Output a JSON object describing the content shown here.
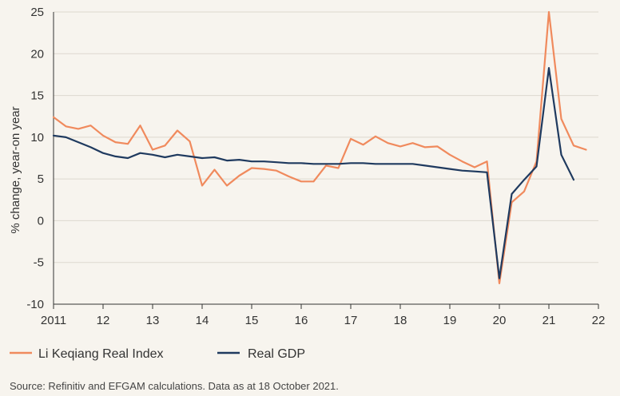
{
  "chart_data": {
    "type": "line",
    "title": "",
    "xlabel": "",
    "ylabel": "% change, year-on year",
    "ylim": [
      -10,
      25
    ],
    "xlim": [
      2011,
      2022
    ],
    "yticks": [
      -10,
      -5,
      0,
      5,
      10,
      15,
      20,
      25
    ],
    "xticks": [
      {
        "value": 2011,
        "label": "2011"
      },
      {
        "value": 2012,
        "label": "12"
      },
      {
        "value": 2013,
        "label": "13"
      },
      {
        "value": 2014,
        "label": "14"
      },
      {
        "value": 2015,
        "label": "15"
      },
      {
        "value": 2016,
        "label": "16"
      },
      {
        "value": 2017,
        "label": "17"
      },
      {
        "value": 2018,
        "label": "18"
      },
      {
        "value": 2019,
        "label": "19"
      },
      {
        "value": 2020,
        "label": "20"
      },
      {
        "value": 2021,
        "label": "21"
      },
      {
        "value": 2022,
        "label": "22"
      }
    ],
    "grid": true,
    "legend_position": "bottom-left",
    "series": [
      {
        "name": "Li Keqiang Real Index",
        "color": "#f08a5d",
        "x": [
          2011.0,
          2011.25,
          2011.5,
          2011.75,
          2012.0,
          2012.25,
          2012.5,
          2012.75,
          2013.0,
          2013.25,
          2013.5,
          2013.75,
          2014.0,
          2014.25,
          2014.5,
          2014.75,
          2015.0,
          2015.25,
          2015.5,
          2015.75,
          2016.0,
          2016.25,
          2016.5,
          2016.75,
          2017.0,
          2017.25,
          2017.5,
          2017.75,
          2018.0,
          2018.25,
          2018.5,
          2018.75,
          2019.0,
          2019.25,
          2019.5,
          2019.75,
          2020.0,
          2020.25,
          2020.5,
          2020.75,
          2021.0,
          2021.25,
          2021.5,
          2021.75
        ],
        "values": [
          12.4,
          11.3,
          11.0,
          11.4,
          10.2,
          9.4,
          9.2,
          11.4,
          8.5,
          9.0,
          10.8,
          9.5,
          4.2,
          6.1,
          4.2,
          5.4,
          6.3,
          6.2,
          6.0,
          5.3,
          4.7,
          4.7,
          6.6,
          6.3,
          9.8,
          9.1,
          10.1,
          9.3,
          8.9,
          9.3,
          8.8,
          8.9,
          7.9,
          7.1,
          6.4,
          7.1,
          -7.5,
          2.2,
          3.5,
          7.1,
          25.0,
          12.2,
          9.0,
          8.5
        ]
      },
      {
        "name": "Real GDP",
        "color": "#1f3a5f",
        "x": [
          2011.0,
          2011.25,
          2011.5,
          2011.75,
          2012.0,
          2012.25,
          2012.5,
          2012.75,
          2013.0,
          2013.25,
          2013.5,
          2013.75,
          2014.0,
          2014.25,
          2014.5,
          2014.75,
          2015.0,
          2015.25,
          2015.5,
          2015.75,
          2016.0,
          2016.25,
          2016.5,
          2016.75,
          2017.0,
          2017.25,
          2017.5,
          2017.75,
          2018.0,
          2018.25,
          2018.5,
          2018.75,
          2019.0,
          2019.25,
          2019.5,
          2019.75,
          2020.0,
          2020.25,
          2020.5,
          2020.75,
          2021.0,
          2021.25,
          2021.5
        ],
        "values": [
          10.2,
          10.0,
          9.4,
          8.8,
          8.1,
          7.7,
          7.5,
          8.1,
          7.9,
          7.6,
          7.9,
          7.7,
          7.5,
          7.6,
          7.2,
          7.3,
          7.1,
          7.1,
          7.0,
          6.9,
          6.9,
          6.8,
          6.8,
          6.8,
          6.9,
          6.9,
          6.8,
          6.8,
          6.8,
          6.8,
          6.6,
          6.4,
          6.2,
          6.0,
          5.9,
          5.8,
          -6.9,
          3.2,
          4.9,
          6.5,
          18.3,
          7.9,
          4.9
        ]
      }
    ],
    "source": "Source: Refinitiv and EFGAM calculations. Data as at 18 October 2021."
  }
}
